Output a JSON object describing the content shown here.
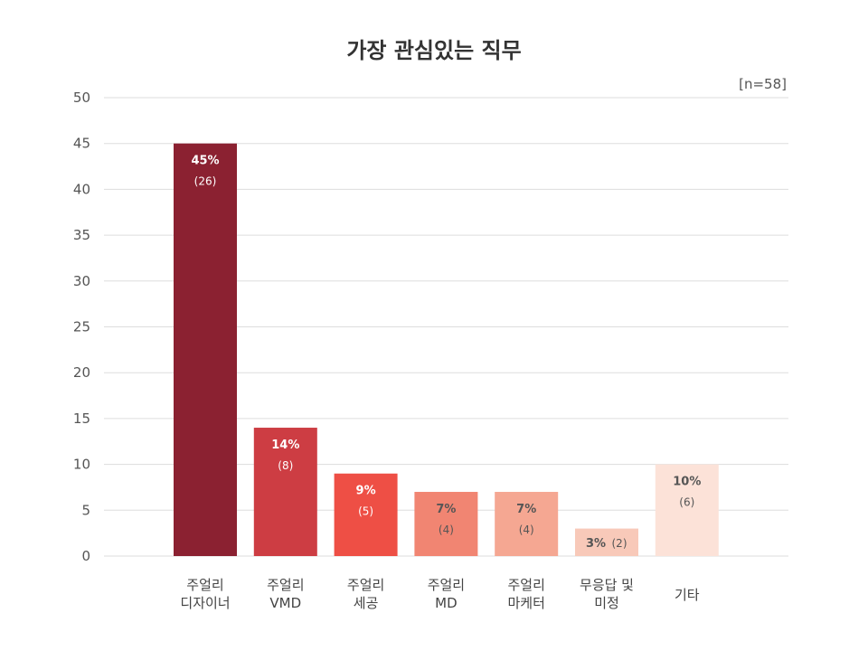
{
  "chart_data": {
    "type": "bar",
    "title": "가장 관심있는 직무",
    "sample_note": "[n=58]",
    "xlabel": "",
    "ylabel": "",
    "ylim": [
      0,
      50
    ],
    "yticks": [
      0,
      5,
      10,
      15,
      20,
      25,
      30,
      35,
      40,
      45,
      50
    ],
    "grid": true,
    "categories": [
      [
        "주얼리",
        "디자이너"
      ],
      [
        "주얼리",
        "VMD"
      ],
      [
        "주얼리",
        "세공"
      ],
      [
        "주얼리",
        "MD"
      ],
      [
        "주얼리",
        "마케터"
      ],
      [
        "무응답 및",
        "미정"
      ],
      [
        "기타"
      ]
    ],
    "values": [
      45,
      14,
      9,
      7,
      7,
      3,
      10
    ],
    "percent_labels": [
      "45%",
      "14%",
      "9%",
      "7%",
      "7%",
      "3%",
      "10%"
    ],
    "count_labels": [
      "(26)",
      "(8)",
      "(5)",
      "(4)",
      "(4)",
      "(2)",
      "(6)"
    ],
    "colors": [
      "#8b2131",
      "#cd3d43",
      "#ee4f45",
      "#f18572",
      "#f5a792",
      "#f8c9b9",
      "#fce2d8"
    ],
    "label_colors": [
      "#ffffff",
      "#ffffff",
      "#ffffff",
      "#555555",
      "#555555",
      "#555555",
      "#555555"
    ]
  }
}
